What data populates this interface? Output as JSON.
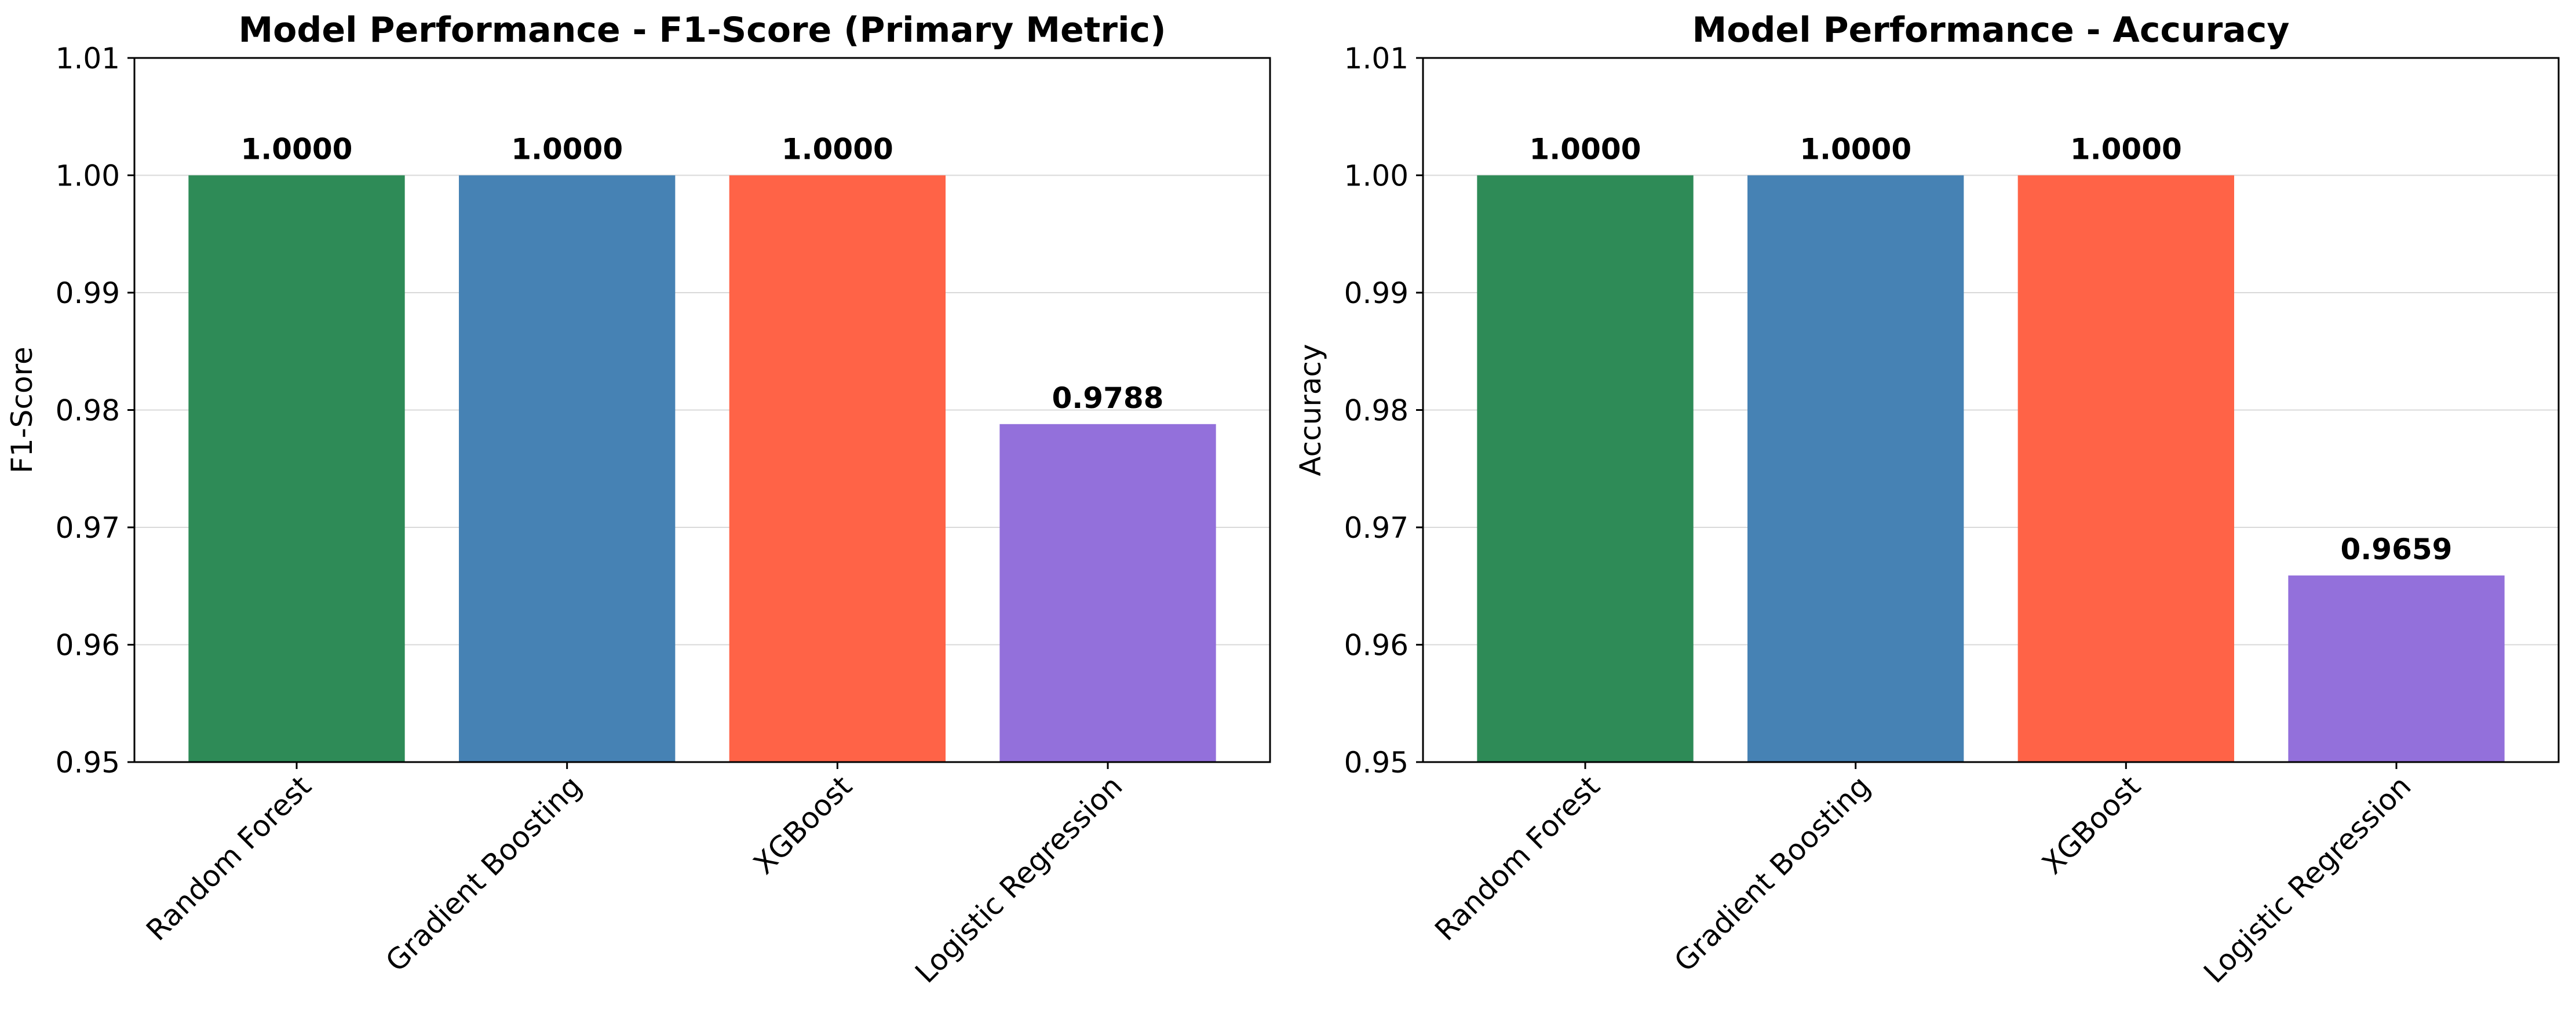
{
  "chart_data": [
    {
      "type": "bar",
      "title": "Model Performance - F1-Score (Primary Metric)",
      "xlabel": "",
      "ylabel": "F1-Score",
      "categories": [
        "Random Forest",
        "Gradient Boosting",
        "XGBoost",
        "Logistic Regression"
      ],
      "values": [
        1.0,
        1.0,
        1.0,
        0.9788
      ],
      "value_labels": [
        "1.0000",
        "1.0000",
        "1.0000",
        "0.9788"
      ],
      "colors": [
        "#2e8b57",
        "#4682b4",
        "#ff6347",
        "#9370db"
      ],
      "ylim": [
        0.95,
        1.01
      ],
      "yticks": [
        0.95,
        0.96,
        0.97,
        0.98,
        0.99,
        1.0,
        1.01
      ],
      "ytick_labels": [
        "0.95",
        "0.96",
        "0.97",
        "0.98",
        "0.99",
        "1.00",
        "1.01"
      ],
      "grid": "horizontal",
      "legend": "none"
    },
    {
      "type": "bar",
      "title": "Model Performance - Accuracy",
      "xlabel": "",
      "ylabel": "Accuracy",
      "categories": [
        "Random Forest",
        "Gradient Boosting",
        "XGBoost",
        "Logistic Regression"
      ],
      "values": [
        1.0,
        1.0,
        1.0,
        0.9659
      ],
      "value_labels": [
        "1.0000",
        "1.0000",
        "1.0000",
        "0.9659"
      ],
      "colors": [
        "#2e8b57",
        "#4682b4",
        "#ff6347",
        "#9370db"
      ],
      "ylim": [
        0.95,
        1.01
      ],
      "yticks": [
        0.95,
        0.96,
        0.97,
        0.98,
        0.99,
        1.0,
        1.01
      ],
      "ytick_labels": [
        "0.95",
        "0.96",
        "0.97",
        "0.98",
        "0.99",
        "1.00",
        "1.01"
      ],
      "grid": "horizontal",
      "legend": "none"
    }
  ]
}
